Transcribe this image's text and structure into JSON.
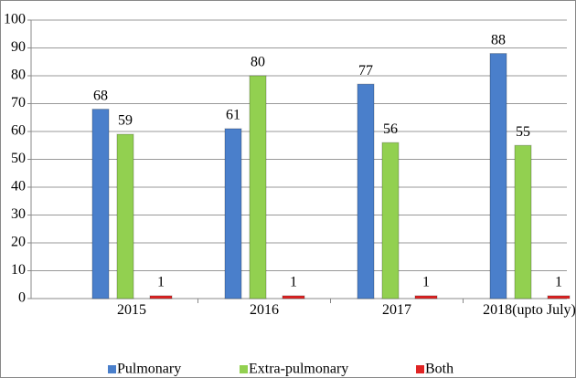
{
  "chart_data": {
    "type": "bar",
    "categories": [
      "2015",
      "2016",
      "2017",
      "2018(upto July)"
    ],
    "series": [
      {
        "name": "Pulmonary",
        "color": "#4a7fcb",
        "values": [
          68,
          61,
          77,
          88
        ]
      },
      {
        "name": "Extra-pulmonary",
        "color": "#92d050",
        "values": [
          59,
          80,
          56,
          55
        ]
      },
      {
        "name": "Both",
        "color": "#e02424",
        "values": [
          1,
          1,
          1,
          1
        ]
      }
    ],
    "ylim": [
      0,
      100
    ],
    "yticks": [
      0,
      10,
      20,
      30,
      40,
      50,
      60,
      70,
      80,
      90,
      100
    ],
    "grid": true,
    "legend": "bottom"
  }
}
